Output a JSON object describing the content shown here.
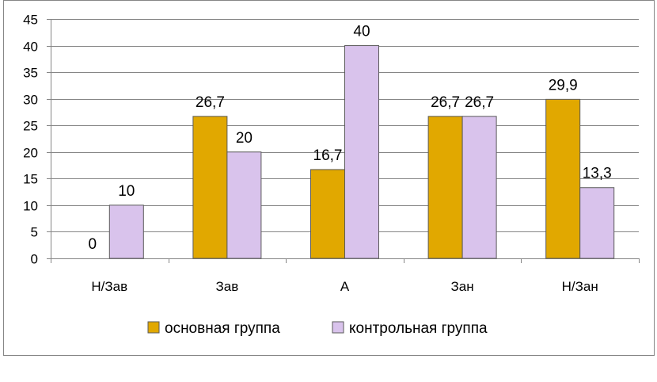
{
  "chart_data": {
    "type": "bar",
    "title": "",
    "xlabel": "",
    "ylabel": "",
    "categories": [
      "Н/Зав",
      "Зав",
      "А",
      "Зан",
      "Н/Зан"
    ],
    "series": [
      {
        "name": "основная группа",
        "color": "#E1A800",
        "values": [
          0,
          26.7,
          16.7,
          26.7,
          29.9
        ],
        "labels": [
          "0",
          "26,7",
          "16,7",
          "26,7",
          "29,9"
        ]
      },
      {
        "name": "контрольная группа",
        "color": "#D9C3EC",
        "values": [
          10,
          20,
          40,
          26.7,
          13.3
        ],
        "labels": [
          "10",
          "20",
          "40",
          "26,7",
          "13,3"
        ]
      }
    ],
    "ylim": [
      0,
      45
    ],
    "yticks": [
      0,
      5,
      10,
      15,
      20,
      25,
      30,
      35,
      40,
      45
    ],
    "grid": true,
    "legend_position": "bottom"
  }
}
